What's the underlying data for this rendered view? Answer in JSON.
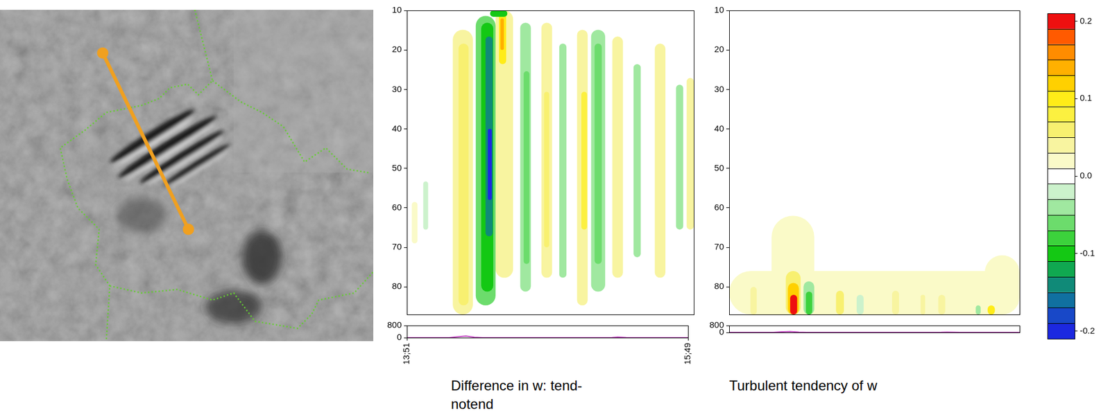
{
  "chart_data": [
    {
      "type": "heatmap",
      "title": "Difference in w: tend-notend",
      "xlim": [
        0,
        100
      ],
      "xticks": [
        {
          "value": 0,
          "label": "13;51"
        },
        {
          "value": 100,
          "label": "15;49"
        }
      ],
      "ylim": [
        87,
        10
      ],
      "yticks": [
        10,
        20,
        30,
        40,
        50,
        60,
        70,
        80
      ],
      "cells": [
        {
          "x": [
            16.0,
            23.0
          ],
          "y": [
            14.9,
            87.0
          ],
          "value": 0.04
        },
        {
          "x": [
            18.0,
            21.5
          ],
          "y": [
            18.4,
            84.7
          ],
          "value": 0.06
        },
        {
          "x": [
            30.9,
            37.0
          ],
          "y": [
            10.0,
            77.7
          ],
          "value": 0.04
        },
        {
          "x": [
            32.1,
            34.6
          ],
          "y": [
            10.0,
            23.6
          ],
          "value": 0.1
        },
        {
          "x": [
            32.6,
            33.8
          ],
          "y": [
            12.0,
            20.0
          ],
          "value": 0.14
        },
        {
          "x": [
            24.0,
            30.9
          ],
          "y": [
            11.4,
            84.7
          ],
          "value": -0.06
        },
        {
          "x": [
            25.9,
            30.1
          ],
          "y": [
            13.1,
            81.2
          ],
          "value": -0.1
        },
        {
          "x": [
            27.4,
            29.9
          ],
          "y": [
            16.6,
            67.2
          ],
          "value": -0.14
        },
        {
          "x": [
            28.2,
            29.6
          ],
          "y": [
            40.0,
            58.0
          ],
          "value": -0.2
        },
        {
          "x": [
            29.0,
            35.0
          ],
          "y": [
            10.0,
            11.6
          ],
          "value": -0.1
        },
        {
          "x": [
            39.5,
            43.2
          ],
          "y": [
            13.1,
            81.2
          ],
          "value": -0.04
        },
        {
          "x": [
            40.7,
            42.7
          ],
          "y": [
            25.4,
            74.2
          ],
          "value": -0.06
        },
        {
          "x": [
            46.9,
            50.6
          ],
          "y": [
            13.1,
            77.7
          ],
          "value": 0.04
        },
        {
          "x": [
            47.8,
            49.6
          ],
          "y": [
            30.6,
            70.0
          ],
          "value": 0.06
        },
        {
          "x": [
            53.1,
            55.6
          ],
          "y": [
            18.4,
            77.7
          ],
          "value": -0.04
        },
        {
          "x": [
            59.3,
            63.0
          ],
          "y": [
            14.9,
            84.7
          ],
          "value": 0.04
        },
        {
          "x": [
            60.8,
            62.8
          ],
          "y": [
            30.6,
            65.5
          ],
          "value": 0.08
        },
        {
          "x": [
            64.2,
            69.1
          ],
          "y": [
            14.9,
            81.2
          ],
          "value": -0.04
        },
        {
          "x": [
            65.4,
            67.9
          ],
          "y": [
            18.4,
            74.2
          ],
          "value": -0.06
        },
        {
          "x": [
            71.6,
            75.3
          ],
          "y": [
            16.6,
            77.7
          ],
          "value": 0.04
        },
        {
          "x": [
            79.0,
            81.5
          ],
          "y": [
            23.6,
            72.5
          ],
          "value": -0.04
        },
        {
          "x": [
            86.4,
            90.1
          ],
          "y": [
            18.4,
            77.7
          ],
          "value": 0.04
        },
        {
          "x": [
            93.8,
            96.3
          ],
          "y": [
            28.8,
            65.5
          ],
          "value": -0.04
        },
        {
          "x": [
            97.5,
            100.0
          ],
          "y": [
            27.1,
            65.5
          ],
          "value": 0.04
        },
        {
          "x": [
            1.7,
            3.7
          ],
          "y": [
            58.5,
            69.0
          ],
          "value": 0.02
        },
        {
          "x": [
            5.7,
            7.4
          ],
          "y": [
            53.3,
            65.5
          ],
          "value": -0.02
        }
      ],
      "terrain": {
        "type": "line",
        "color": "#c040c0",
        "x": [
          0,
          15,
          18,
          21,
          24,
          27,
          60,
          70,
          73,
          75,
          78,
          80,
          100
        ],
        "values": [
          0,
          0,
          60,
          100,
          30,
          0,
          0,
          0,
          10,
          40,
          10,
          0,
          0
        ],
        "ylim": [
          0,
          800
        ],
        "yticks": [
          0,
          800
        ]
      }
    },
    {
      "type": "heatmap",
      "title": "Turbulent tendency of w",
      "tick_labels": "y",
      "xlim": [
        0,
        100
      ],
      "ylim": [
        87,
        10
      ],
      "yticks": [
        10,
        20,
        30,
        40,
        50,
        60,
        70,
        80
      ],
      "cells": [
        {
          "x": [
            0.0,
            100.0
          ],
          "y": [
            76.0,
            87.0
          ],
          "value": 0.02
        },
        {
          "x": [
            14.6,
            29.3
          ],
          "y": [
            62.0,
            87.0
          ],
          "value": 0.02
        },
        {
          "x": [
            88.0,
            100.0
          ],
          "y": [
            72.0,
            87.0
          ],
          "value": 0.02
        },
        {
          "x": [
            7.3,
            9.5
          ],
          "y": [
            80.0,
            87.0
          ],
          "value": 0.04
        },
        {
          "x": [
            19.5,
            24.6
          ],
          "y": [
            76.0,
            87.0
          ],
          "value": 0.06
        },
        {
          "x": [
            20.2,
            24.0
          ],
          "y": [
            79.0,
            87.0
          ],
          "value": 0.12
        },
        {
          "x": [
            21.0,
            23.4
          ],
          "y": [
            82.0,
            87.0
          ],
          "value": 0.2
        },
        {
          "x": [
            25.6,
            29.3
          ],
          "y": [
            78.6,
            87.0
          ],
          "value": -0.04
        },
        {
          "x": [
            26.4,
            28.6
          ],
          "y": [
            81.2,
            87.0
          ],
          "value": -0.08
        },
        {
          "x": [
            36.8,
            39.5
          ],
          "y": [
            81.0,
            87.0
          ],
          "value": 0.06
        },
        {
          "x": [
            43.9,
            46.3
          ],
          "y": [
            82.0,
            87.0
          ],
          "value": -0.02
        },
        {
          "x": [
            56.1,
            58.5
          ],
          "y": [
            81.0,
            87.0
          ],
          "value": 0.04
        },
        {
          "x": [
            65.9,
            67.5
          ],
          "y": [
            82.0,
            87.0
          ],
          "value": 0.04
        },
        {
          "x": [
            72.0,
            74.4
          ],
          "y": [
            82.0,
            87.0
          ],
          "value": 0.04
        },
        {
          "x": [
            84.9,
            86.6
          ],
          "y": [
            84.7,
            87.0
          ],
          "value": -0.04
        },
        {
          "x": [
            89.0,
            91.5
          ],
          "y": [
            84.7,
            87.0
          ],
          "value": 0.1
        }
      ],
      "terrain": {
        "type": "line",
        "color": "#c040c0",
        "x": [
          0,
          15,
          18,
          21,
          24,
          27,
          60,
          70,
          73,
          75,
          78,
          80,
          100
        ],
        "values": [
          0,
          0,
          60,
          100,
          30,
          0,
          0,
          0,
          10,
          40,
          10,
          0,
          0
        ],
        "ylim": [
          0,
          800
        ],
        "yticks": [
          0,
          800
        ]
      }
    }
  ],
  "colorbar": {
    "lim": [
      -0.21,
      0.21
    ],
    "ticks": [
      -0.2,
      -0.1,
      {
        "value": 0,
        "label": "0.0"
      },
      0.1,
      0.2
    ],
    "colors": [
      "#1c28e0",
      "#1848c8",
      "#1070a0",
      "#108a78",
      "#10a850",
      "#14c814",
      "#3cd23c",
      "#6cdc6c",
      "#a0e8a0",
      "#ccf2cc",
      "#ffffff",
      "#fafac8",
      "#f8f4a0",
      "#f8f070",
      "#fcf040",
      "#ffec18",
      "#ffd000",
      "#ffb000",
      "#ff8c00",
      "#ff5a00",
      "#ee1010"
    ]
  }
}
